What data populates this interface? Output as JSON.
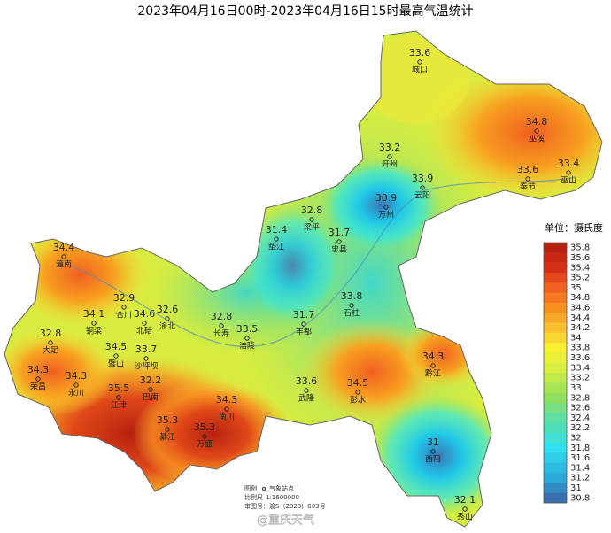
{
  "title": "2023年04月16日00时-2023年04月16日15时最高气温统计",
  "stations": [
    {
      "name": "城口",
      "value": 33.6
    },
    {
      "name": "巫溪",
      "value": 34.8
    },
    {
      "name": "开州",
      "value": 33.2
    },
    {
      "name": "奉节",
      "value": 33.6
    },
    {
      "name": "巫山",
      "value": 33.4
    },
    {
      "name": "云阳",
      "value": 33.9
    },
    {
      "name": "万州",
      "value": 30.9
    },
    {
      "name": "梁平",
      "value": 32.8
    },
    {
      "name": "垫江",
      "value": 31.4
    },
    {
      "name": "忠县",
      "value": 31.7
    },
    {
      "name": "潼南",
      "value": 34.4
    },
    {
      "name": "石柱",
      "value": 33.8
    },
    {
      "name": "合川",
      "value": 32.9
    },
    {
      "name": "北碚",
      "value": 34.6
    },
    {
      "name": "渝北",
      "value": 32.6
    },
    {
      "name": "铜梁",
      "value": 34.1
    },
    {
      "name": "长寿",
      "value": 32.8
    },
    {
      "name": "丰都",
      "value": 31.7
    },
    {
      "name": "涪陵",
      "value": 33.5
    },
    {
      "name": "大足",
      "value": 32.8
    },
    {
      "name": "璧山",
      "value": 34.5
    },
    {
      "name": "沙坪坝",
      "value": 33.7
    },
    {
      "name": "荣昌",
      "value": 34.3
    },
    {
      "name": "永川",
      "value": 34.3
    },
    {
      "name": "巴南",
      "value": 32.2
    },
    {
      "name": "武隆",
      "value": 33.6
    },
    {
      "name": "彭水",
      "value": 34.5
    },
    {
      "name": "黔江",
      "value": 34.3
    },
    {
      "name": "江津",
      "value": 35.5
    },
    {
      "name": "南川",
      "value": 34.3
    },
    {
      "name": "綦江",
      "value": 35.3
    },
    {
      "name": "万盛",
      "value": 35.3
    },
    {
      "name": "酉阳",
      "value": 31
    },
    {
      "name": "秀山",
      "value": 32.1
    }
  ],
  "legend": {
    "unit": "单位：摄氏度",
    "values": [
      35.8,
      35.6,
      35.4,
      35.2,
      35,
      34.8,
      34.6,
      34.4,
      34.2,
      34,
      33.8,
      33.6,
      33.4,
      33.2,
      33,
      32.8,
      32.6,
      32.4,
      32.2,
      32,
      31.8,
      31.6,
      31.4,
      31.2,
      31,
      30.8
    ]
  },
  "footer": {
    "legend_label": "图例",
    "legend_item": "气象站点",
    "scale_label": "比例尺",
    "scale": "1:1600000",
    "approval": "审图号：渝S（2023）003号",
    "watermark": "@重庆天气"
  }
}
